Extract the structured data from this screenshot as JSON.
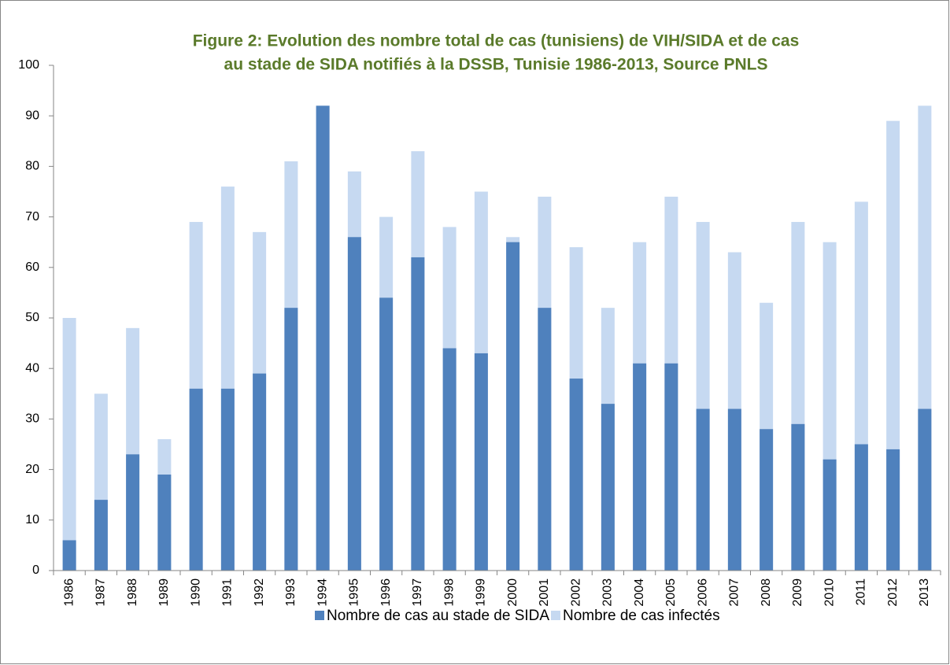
{
  "chart_data": {
    "type": "bar",
    "title": [
      "Figure 2: Evolution des nombre total de cas (tunisiens) de VIH/SIDA  et  de cas",
      "au stade de SIDA notifiés à la DSSB, Tunisie 1986-2013, Source PNLS"
    ],
    "categories": [
      "1986",
      "1987",
      "1988",
      "1989",
      "1990",
      "1991",
      "1992",
      "1993",
      "1994",
      "1995",
      "1996",
      "1997",
      "1998",
      "1999",
      "2000",
      "2001",
      "2002",
      "2003",
      "2004",
      "2005",
      "2006",
      "2007",
      "2008",
      "2009",
      "2010",
      "2011",
      "2012",
      "2013"
    ],
    "series": [
      {
        "name": "Nombre de cas au stade de SIDA",
        "color": "#4f81bd",
        "values": [
          6,
          14,
          23,
          19,
          36,
          36,
          39,
          52,
          92,
          66,
          54,
          62,
          44,
          43,
          65,
          52,
          38,
          33,
          41,
          41,
          32,
          32,
          28,
          29,
          22,
          25,
          24,
          32
        ]
      },
      {
        "name": "Nombre de cas infectés",
        "color": "#c6d9f1",
        "values": [
          50,
          35,
          48,
          26,
          69,
          76,
          67,
          81,
          92,
          79,
          70,
          83,
          68,
          75,
          66,
          74,
          64,
          52,
          65,
          74,
          69,
          63,
          53,
          69,
          65,
          73,
          89,
          92
        ]
      }
    ],
    "ylim": [
      0,
      100
    ],
    "yticks": [
      0,
      10,
      20,
      30,
      40,
      50,
      60,
      70,
      80,
      90,
      100
    ],
    "legend": "bottom"
  }
}
